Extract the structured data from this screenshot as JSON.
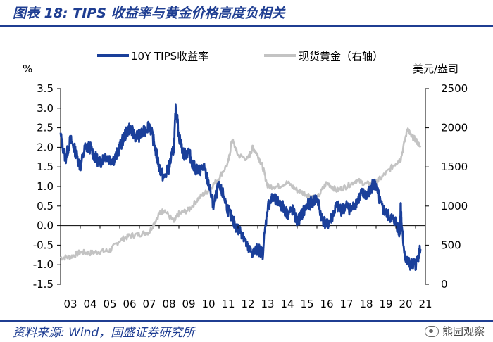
{
  "header": {
    "title": "图表 18:  TIPS 收益率与黄金价格高度负相关"
  },
  "footer": {
    "source": "资料来源: Wind，国盛证券研究所",
    "watermark": "熊园观察"
  },
  "colors": {
    "tips": "#1a3f9a",
    "gold": "#c3c3c3",
    "rule": "#1f3e92"
  },
  "chart_data": {
    "type": "line",
    "title": "TIPS 收益率与黄金价格高度负相关",
    "y_left_unit": "%",
    "y_right_unit": "美元/盎司",
    "ylim_left": [
      -1.5,
      3.5
    ],
    "ylim_right": [
      0,
      2500
    ],
    "left_ticks": [
      "3.5",
      "3.0",
      "2.5",
      "2.0",
      "1.5",
      "1.0",
      "0.5",
      "0.0",
      "-0.5",
      "-1.0",
      "-1.5"
    ],
    "right_ticks": [
      "2500",
      "2000",
      "1500",
      "1000",
      "500",
      "0"
    ],
    "x_ticks": [
      "03",
      "04",
      "05",
      "06",
      "07",
      "08",
      "09",
      "10",
      "11",
      "12",
      "13",
      "14",
      "15",
      "16",
      "17",
      "18",
      "19",
      "20",
      "21"
    ],
    "series": [
      {
        "name": "10Y TIPS收益率",
        "axis": "left",
        "x": [
          2003.0,
          2003.25,
          2003.5,
          2003.75,
          2004.0,
          2004.25,
          2004.5,
          2004.75,
          2005.0,
          2005.25,
          2005.5,
          2005.75,
          2006.0,
          2006.25,
          2006.5,
          2006.75,
          2007.0,
          2007.25,
          2007.5,
          2007.75,
          2008.0,
          2008.25,
          2008.5,
          2008.75,
          2008.85,
          2009.0,
          2009.25,
          2009.5,
          2009.75,
          2010.0,
          2010.25,
          2010.5,
          2010.75,
          2011.0,
          2011.25,
          2011.5,
          2011.75,
          2012.0,
          2012.25,
          2012.5,
          2012.75,
          2013.0,
          2013.25,
          2013.5,
          2013.75,
          2014.0,
          2014.25,
          2014.5,
          2014.75,
          2015.0,
          2015.25,
          2015.5,
          2015.75,
          2016.0,
          2016.25,
          2016.5,
          2016.75,
          2017.0,
          2017.25,
          2017.5,
          2017.75,
          2018.0,
          2018.25,
          2018.5,
          2018.75,
          2018.85,
          2019.0,
          2019.25,
          2019.5,
          2019.75,
          2020.0,
          2020.2,
          2020.25,
          2020.3,
          2020.5,
          2020.75,
          2021.0,
          2021.25
        ],
        "y": [
          2.3,
          1.7,
          2.2,
          1.9,
          1.5,
          2.0,
          2.0,
          1.75,
          1.6,
          1.8,
          1.7,
          1.7,
          2.0,
          2.3,
          2.5,
          2.3,
          2.3,
          2.4,
          2.6,
          2.1,
          1.5,
          1.2,
          1.5,
          2.0,
          3.1,
          2.3,
          1.8,
          1.9,
          1.5,
          1.4,
          1.5,
          1.1,
          0.5,
          1.0,
          0.8,
          0.4,
          0.1,
          -0.1,
          -0.2,
          -0.6,
          -0.7,
          -0.6,
          -0.7,
          0.5,
          0.7,
          0.6,
          0.5,
          0.3,
          0.4,
          0.1,
          0.3,
          0.5,
          0.6,
          0.7,
          0.2,
          0.0,
          0.2,
          0.5,
          0.4,
          0.5,
          0.4,
          0.6,
          0.8,
          0.8,
          0.9,
          1.1,
          1.0,
          0.5,
          0.3,
          0.2,
          0.1,
          -0.2,
          0.6,
          -0.1,
          -0.9,
          -1.0,
          -1.0,
          -0.6
        ]
      },
      {
        "name": "现货黄金（右轴）",
        "axis": "right",
        "x": [
          2003.0,
          2003.5,
          2004.0,
          2004.5,
          2005.0,
          2005.5,
          2006.0,
          2006.5,
          2007.0,
          2007.5,
          2008.0,
          2008.25,
          2008.75,
          2009.0,
          2009.5,
          2010.0,
          2010.5,
          2011.0,
          2011.5,
          2011.7,
          2012.0,
          2012.5,
          2012.75,
          2013.0,
          2013.25,
          2013.5,
          2014.0,
          2014.5,
          2015.0,
          2015.5,
          2016.0,
          2016.5,
          2017.0,
          2017.5,
          2018.0,
          2018.5,
          2019.0,
          2019.5,
          2020.0,
          2020.25,
          2020.6,
          2020.75,
          2021.0,
          2021.25
        ],
        "y": [
          340,
          350,
          410,
          400,
          420,
          430,
          560,
          620,
          640,
          670,
          900,
          950,
          800,
          900,
          950,
          1100,
          1200,
          1350,
          1550,
          1850,
          1650,
          1600,
          1750,
          1650,
          1500,
          1250,
          1250,
          1300,
          1200,
          1150,
          1100,
          1300,
          1200,
          1250,
          1330,
          1280,
          1300,
          1420,
          1550,
          1600,
          2000,
          1900,
          1850,
          1750
        ]
      }
    ],
    "legend": [
      "10Y TIPS收益率",
      "现货黄金（右轴）"
    ]
  }
}
